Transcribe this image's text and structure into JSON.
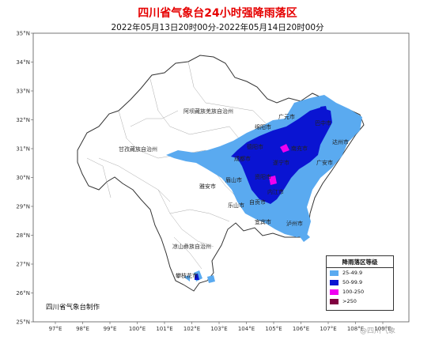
{
  "title": "四川省气象台24小时强降雨落区",
  "subtitle": "2022年05月13日20时00分-2022年05月14日20时00分",
  "x_ticks": [
    "97°E",
    "98°E",
    "99°E",
    "100°E",
    "101°E",
    "102°E",
    "103°E",
    "104°E",
    "105°E",
    "106°E",
    "107°E",
    "108°E",
    "109°E"
  ],
  "y_ticks": [
    "35°N",
    "34°N",
    "33°N",
    "32°N",
    "31°N",
    "30°N",
    "29°N",
    "28°N",
    "27°N",
    "26°N",
    "25°N"
  ],
  "places": [
    "阿坝藏族羌族自治州",
    "甘孜藏族自治州",
    "凉山彝族自治州",
    "广元市",
    "绵阳市",
    "德阳市",
    "成都市",
    "雅安市",
    "眉山市",
    "乐山市",
    "攀枝花市",
    "达州市",
    "巴中市",
    "南充市",
    "遂宁市",
    "资阳市",
    "内江市",
    "自贡市",
    "宜宾市",
    "泸州市",
    "广安市"
  ],
  "legend": {
    "title": "降雨落区等级",
    "items": [
      {
        "label": "25-49.9",
        "color": "#5aaaf0"
      },
      {
        "label": "50-99.9",
        "color": "#0a14d2"
      },
      {
        "label": "100-250",
        "color": "#f000f0"
      },
      {
        "label": ">250",
        "color": "#800040"
      }
    ]
  },
  "producer": "四川省气象台制作",
  "watermark": "@四川气象"
}
